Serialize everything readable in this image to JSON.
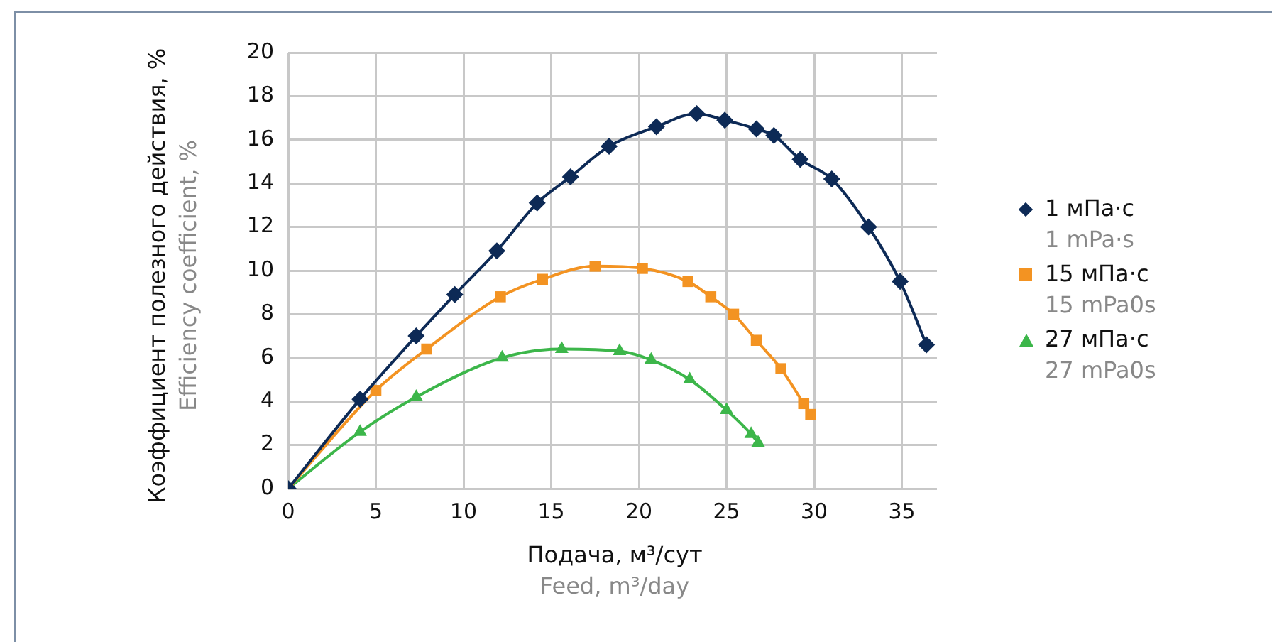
{
  "chart_data": {
    "type": "line",
    "xlabel": "Подача, м³/сут\nFeed, m³/day",
    "ylabel": "Коэффициент полезного действия, %\nEfficiency coefficient, %",
    "xlim": [
      0,
      37
    ],
    "xticks": [
      0,
      5,
      10,
      15,
      20,
      25,
      30,
      35
    ],
    "ylim": [
      0,
      20
    ],
    "yticks": [
      0,
      2,
      4,
      6,
      8,
      10,
      12,
      14,
      16,
      18,
      20
    ],
    "grid": true,
    "legend": "right",
    "series": [
      {
        "name": "1 мПа·с\n1 mPa·s",
        "color": "#0d2a56",
        "marker": "diamond",
        "x": [
          0,
          4.1,
          7.3,
          9.5,
          11.9,
          14.2,
          16.1,
          18.3,
          21.0,
          23.3,
          24.9,
          26.7,
          27.7,
          29.2,
          31.0,
          33.1,
          34.9,
          36.4
        ],
        "values": [
          0,
          4.1,
          7.0,
          8.9,
          10.9,
          13.1,
          14.3,
          15.7,
          16.6,
          17.2,
          16.9,
          16.5,
          16.2,
          15.1,
          14.2,
          12.0,
          9.5,
          6.6
        ]
      },
      {
        "name": "15 мПа·с\n15 mPa0s",
        "color": "#f39322",
        "marker": "square",
        "x": [
          0,
          5.0,
          7.9,
          12.1,
          14.5,
          17.5,
          20.2,
          22.8,
          24.1,
          25.4,
          26.7,
          28.1,
          29.4,
          29.8
        ],
        "values": [
          0,
          4.5,
          6.4,
          8.8,
          9.6,
          10.2,
          10.1,
          9.5,
          8.8,
          8.0,
          6.8,
          5.5,
          3.9,
          3.4
        ]
      },
      {
        "name": "27 мПа·с\n27 mPa0s",
        "color": "#3cb64a",
        "marker": "triangle",
        "x": [
          0,
          4.1,
          7.3,
          12.2,
          15.6,
          18.9,
          20.7,
          22.9,
          25.0,
          26.4,
          26.8
        ],
        "values": [
          0,
          2.6,
          4.2,
          6.0,
          6.4,
          6.3,
          5.9,
          5.0,
          3.6,
          2.5,
          2.1
        ]
      }
    ]
  }
}
